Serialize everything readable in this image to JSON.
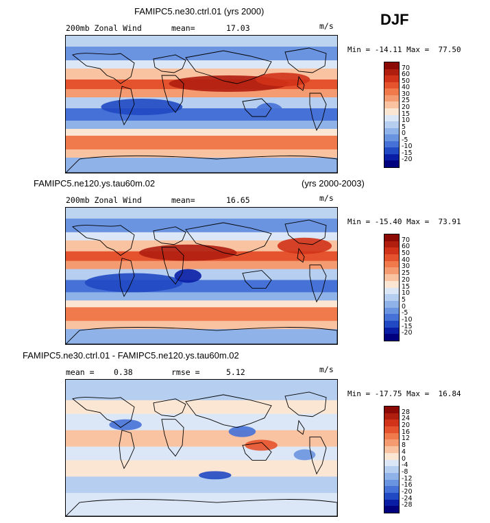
{
  "season": "DJF",
  "panels": [
    {
      "title": "FAMIPC5.ne30.ctrl.01 (yrs 2000)",
      "left_label": "200mb Zonal Wind",
      "mid_label": "mean=",
      "mid_value": "17.03",
      "units": "m/s",
      "minmax": "Min = -14.11 Max =  77.50"
    },
    {
      "title": "FAMIPC5.ne120.ys.tau60m.02",
      "title_right": "(yrs 2000-2003)",
      "left_label": "200mb Zonal Wind",
      "mid_label": "mean=",
      "mid_value": "16.65",
      "units": "m/s",
      "minmax": "Min = -15.40 Max =  73.91"
    },
    {
      "title": "FAMIPC5.ne30.ctrl.01 - FAMIPC5.ne120.ys.tau60m.02",
      "left_label": "mean =",
      "left_value": "0.38",
      "mid_label": "rmse =",
      "mid_value": "5.12",
      "units": "m/s",
      "minmax": "Min = -17.75 Max =  16.84"
    }
  ],
  "chart_data": [
    {
      "type": "heatmap",
      "title": "FAMIPC5.ne30.ctrl.01 (yrs 2000)",
      "variable": "200mb Zonal Wind",
      "units": "m/s",
      "mean": 17.03,
      "min": -14.11,
      "max": 77.5,
      "colorbar_levels": [
        "70",
        "60",
        "50",
        "40",
        "30",
        "25",
        "20",
        "15",
        "10",
        "5",
        "0",
        "-5",
        "-10",
        "-15",
        "-20"
      ]
    },
    {
      "type": "heatmap",
      "title": "FAMIPC5.ne120.ys.tau60m.02 (yrs 2000-2003)",
      "variable": "200mb Zonal Wind",
      "units": "m/s",
      "mean": 16.65,
      "min": -15.4,
      "max": 73.91,
      "colorbar_levels": [
        "70",
        "60",
        "50",
        "40",
        "30",
        "25",
        "20",
        "15",
        "10",
        "5",
        "0",
        "-5",
        "-10",
        "-15",
        "-20"
      ]
    },
    {
      "type": "heatmap",
      "title": "FAMIPC5.ne30.ctrl.01 - FAMIPC5.ne120.ys.tau60m.02",
      "variable": "200mb Zonal Wind difference",
      "units": "m/s",
      "mean": 0.38,
      "rmse": 5.12,
      "min": -17.75,
      "max": 16.84,
      "colorbar_levels": [
        "28",
        "24",
        "20",
        "16",
        "12",
        "8",
        "4",
        "0",
        "-4",
        "-8",
        "-12",
        "-16",
        "-20",
        "-24",
        "-28"
      ]
    }
  ],
  "colors": {
    "scale": [
      "#8b0a05",
      "#b01e0f",
      "#d0331a",
      "#e4532d",
      "#f07a4c",
      "#f59b72",
      "#f9c2a0",
      "#fbe6d4",
      "#dbe7f6",
      "#b6cff0",
      "#8fb2e9",
      "#6a93e0",
      "#4671d7",
      "#2049c3",
      "#0a1ea5",
      "#00007f"
    ]
  }
}
